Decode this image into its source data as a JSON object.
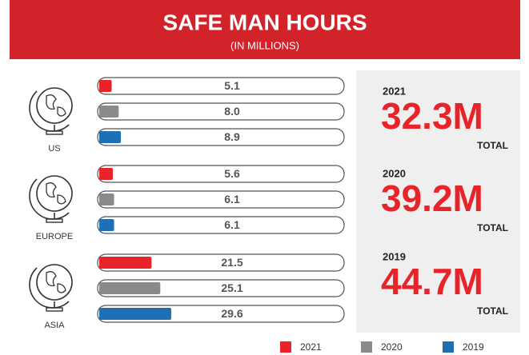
{
  "chart_data": {
    "type": "bar",
    "orientation": "horizontal",
    "title": "SAFE MAN HOURS",
    "subtitle": "(IN MILLIONS)",
    "categories": [
      "US",
      "EUROPE",
      "ASIA"
    ],
    "xlim": [
      0,
      100
    ],
    "series": [
      {
        "name": "2021",
        "color": "#e8232a",
        "values": [
          5.1,
          5.6,
          21.5
        ],
        "value_labels": [
          "5.1",
          "5.6",
          "21.5"
        ]
      },
      {
        "name": "2020",
        "color": "#8a8a8a",
        "values": [
          8.0,
          6.1,
          25.1
        ],
        "value_labels": [
          "8.0",
          "6.1",
          "25.1"
        ]
      },
      {
        "name": "2019",
        "color": "#1f6fb5",
        "values": [
          8.9,
          6.1,
          29.6
        ],
        "value_labels": [
          "8.9",
          "6.1",
          "29.6"
        ]
      }
    ],
    "totals": [
      {
        "year": "2021",
        "value": 32.3,
        "value_label": "32.3M",
        "label": "TOTAL"
      },
      {
        "year": "2020",
        "value": 39.2,
        "value_label": "39.2M",
        "label": "TOTAL"
      },
      {
        "year": "2019",
        "value": 44.7,
        "value_label": "44.7M",
        "label": "TOTAL"
      }
    ]
  }
}
